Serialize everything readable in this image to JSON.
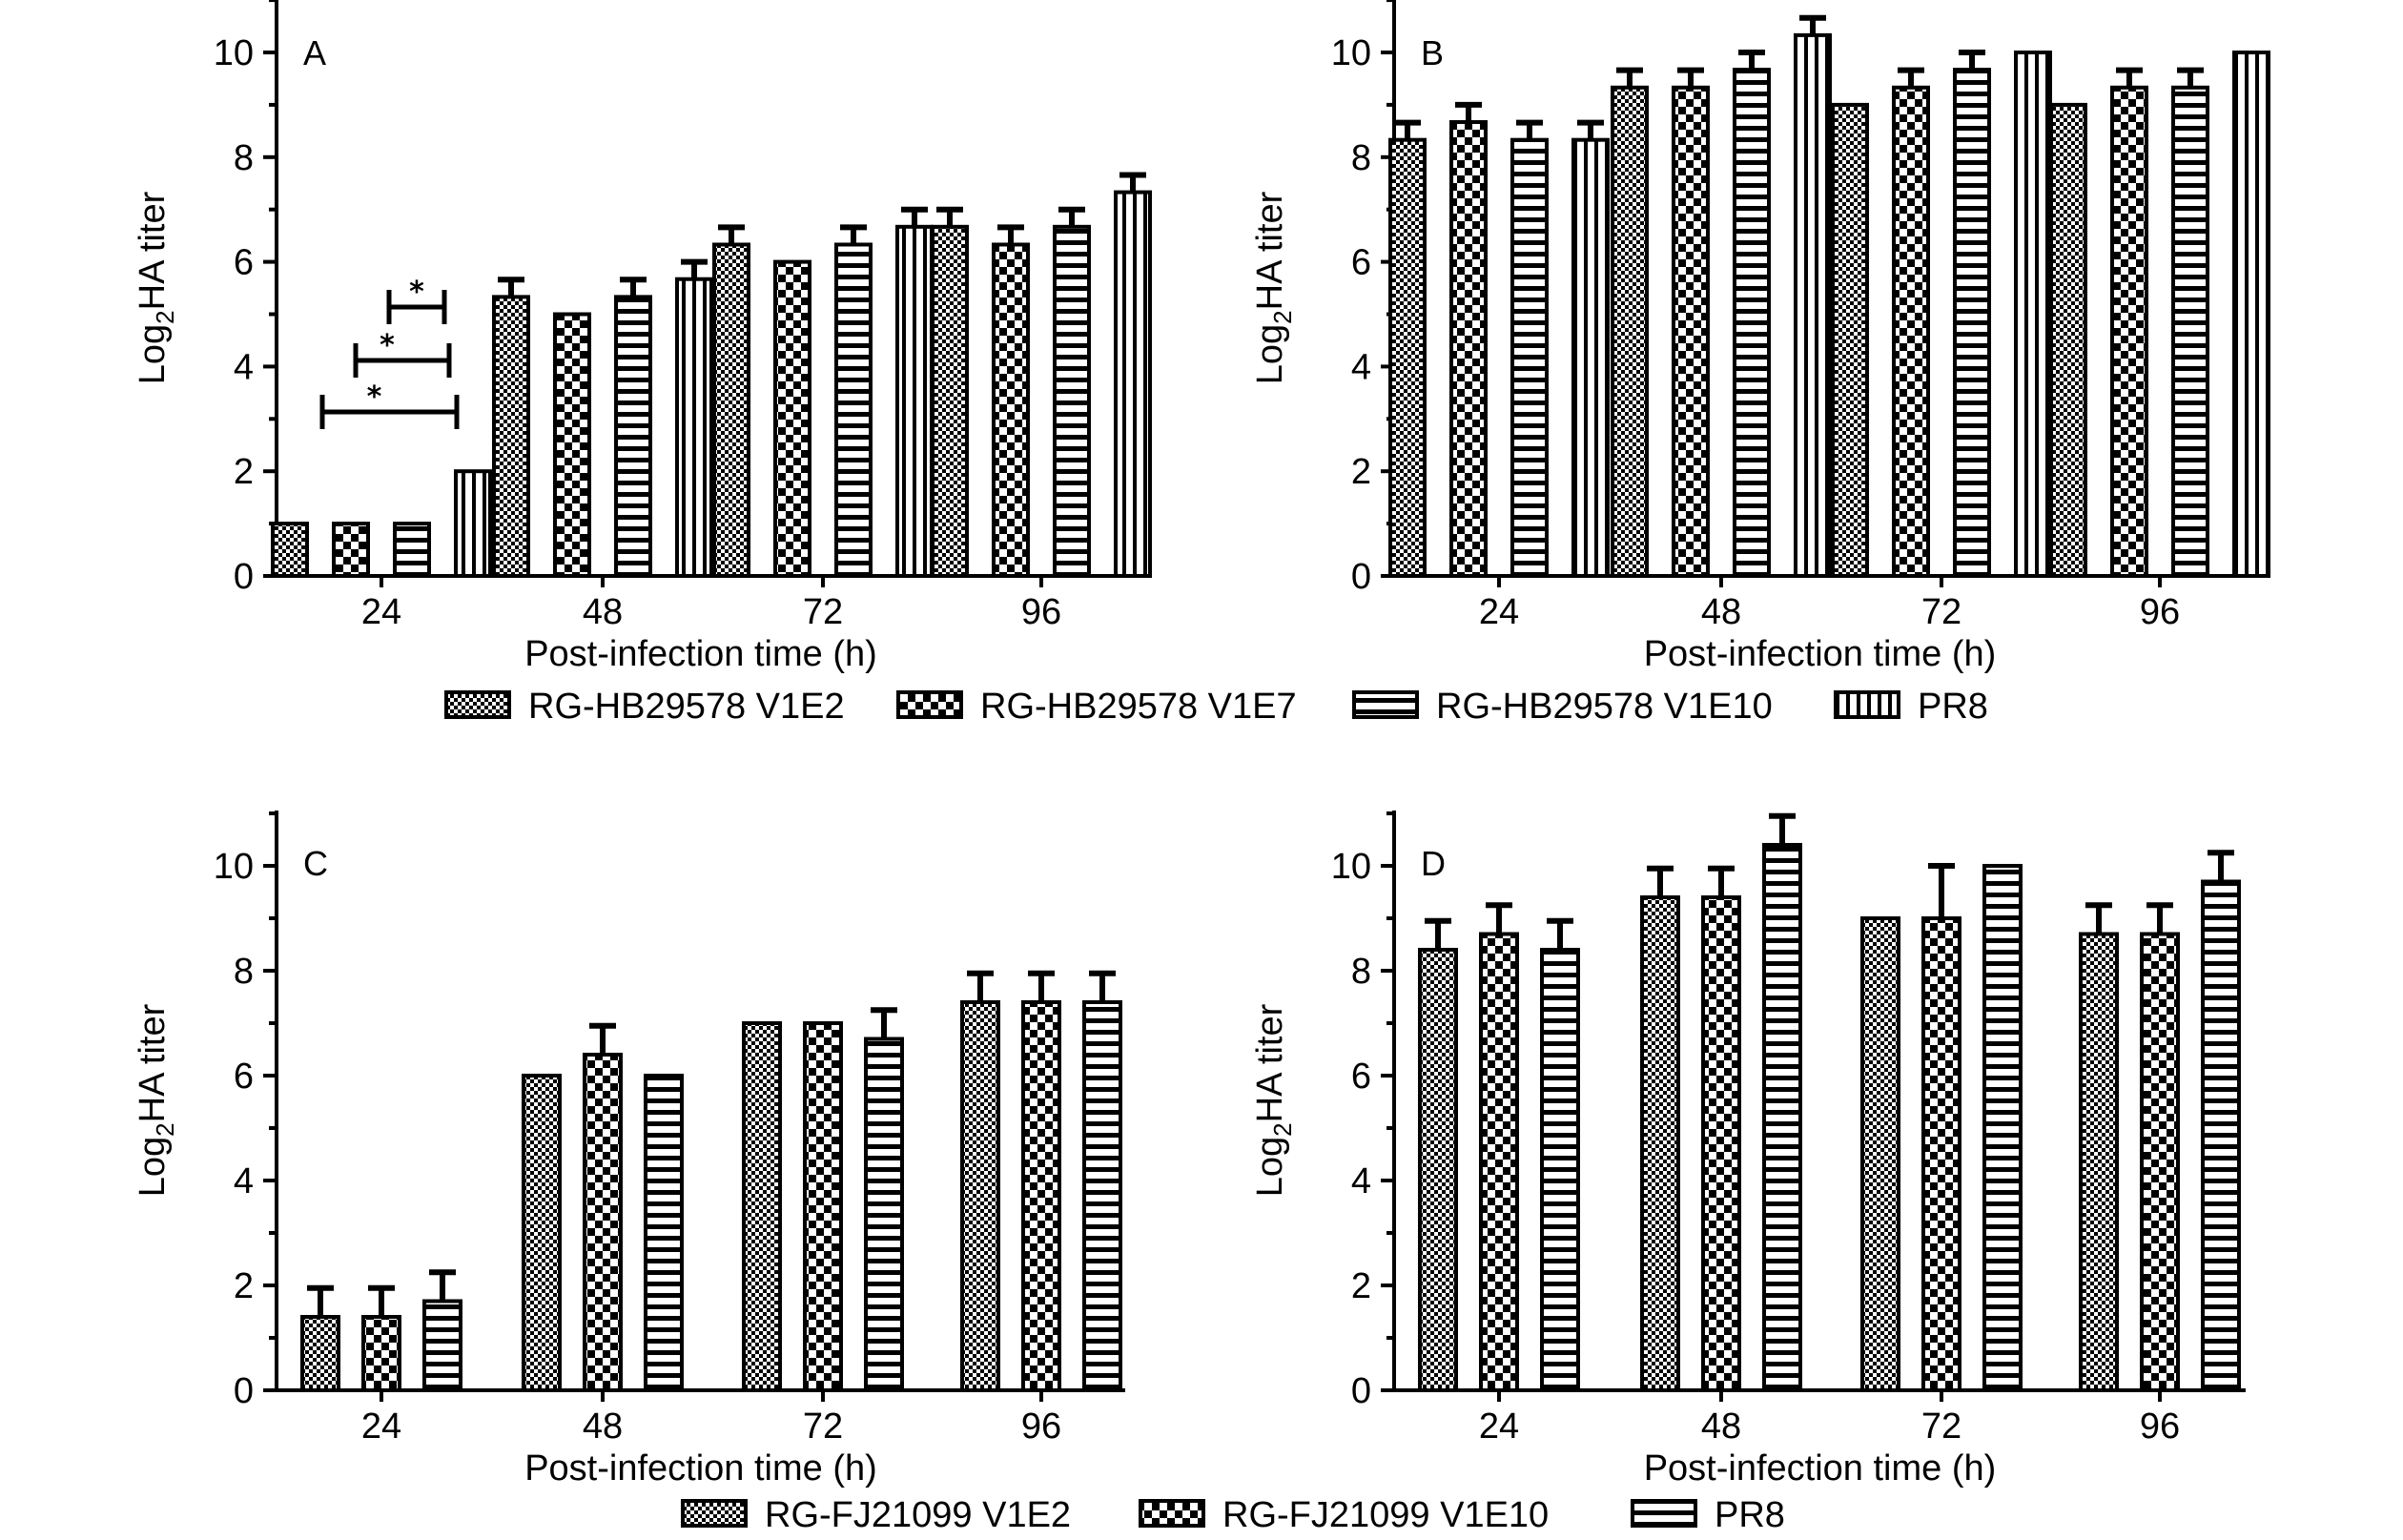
{
  "chart_data": [
    {
      "panel": "A",
      "type": "bar",
      "categories": [
        "24",
        "48",
        "72",
        "96"
      ],
      "xlabel": "Post-infection time (h)",
      "ylabel": {
        "main": "Log",
        "sub": "2",
        "rest": "HA titer"
      },
      "ylim": [
        0,
        11
      ],
      "yticks": [
        "0",
        "2",
        "4",
        "6",
        "8",
        "10"
      ],
      "legend_group": 0,
      "series": [
        {
          "name": "RG-HB29578 V1E2",
          "values": [
            1,
            5.33,
            6.33,
            6.67
          ],
          "errors": [
            0,
            0.33,
            0.33,
            0.33
          ]
        },
        {
          "name": "RG-HB29578 V1E7",
          "values": [
            1,
            5,
            6,
            6.33
          ],
          "errors": [
            0,
            0,
            0,
            0.33
          ]
        },
        {
          "name": "RG-HB29578 V1E10",
          "values": [
            1,
            5.33,
            6.33,
            6.67
          ],
          "errors": [
            0,
            0.33,
            0.33,
            0.33
          ]
        },
        {
          "name": "PR8",
          "values": [
            2,
            5.67,
            6.67,
            7.33
          ],
          "errors": [
            0,
            0.33,
            0.33,
            0.33
          ]
        }
      ],
      "annotations": [
        "*",
        "*",
        "*"
      ]
    },
    {
      "panel": "B",
      "type": "bar",
      "categories": [
        "24",
        "48",
        "72",
        "96"
      ],
      "xlabel": "Post-infection time (h)",
      "ylabel": {
        "main": "Log",
        "sub": "2",
        "rest": "HA titer"
      },
      "ylim": [
        0,
        11
      ],
      "yticks": [
        "0",
        "2",
        "4",
        "6",
        "8",
        "10"
      ],
      "legend_group": 0,
      "series": [
        {
          "name": "RG-HB29578 V1E2",
          "values": [
            8.33,
            9.33,
            9,
            9
          ],
          "errors": [
            0.33,
            0.33,
            0,
            0
          ]
        },
        {
          "name": "RG-HB29578 V1E7",
          "values": [
            8.67,
            9.33,
            9.33,
            9.33
          ],
          "errors": [
            0.33,
            0.33,
            0.33,
            0.33
          ]
        },
        {
          "name": "RG-HB29578 V1E10",
          "values": [
            8.33,
            9.67,
            9.67,
            9.33
          ],
          "errors": [
            0.33,
            0.33,
            0.33,
            0.33
          ]
        },
        {
          "name": "PR8",
          "values": [
            8.33,
            10.33,
            10,
            10
          ],
          "errors": [
            0.33,
            0.33,
            0,
            0
          ]
        }
      ]
    },
    {
      "panel": "C",
      "type": "bar",
      "categories": [
        "24",
        "48",
        "72",
        "96"
      ],
      "xlabel": "Post-infection time (h)",
      "ylabel": {
        "main": "Log",
        "sub": "2",
        "rest": "HA titer"
      },
      "ylim": [
        0,
        11
      ],
      "yticks": [
        "0",
        "2",
        "4",
        "6",
        "8",
        "10"
      ],
      "legend_group": 1,
      "series": [
        {
          "name": "RG-FJ21099 V1E2",
          "values": [
            1.4,
            6,
            7,
            7.4
          ],
          "errors": [
            0.55,
            0,
            0,
            0.55
          ]
        },
        {
          "name": "RG-FJ21099 V1E10",
          "values": [
            1.4,
            6.4,
            7,
            7.4
          ],
          "errors": [
            0.55,
            0.55,
            0,
            0.55
          ]
        },
        {
          "name": "PR8",
          "values": [
            1.7,
            6,
            6.7,
            7.4
          ],
          "errors": [
            0.55,
            0,
            0.55,
            0.55
          ]
        }
      ]
    },
    {
      "panel": "D",
      "type": "bar",
      "categories": [
        "24",
        "48",
        "72",
        "96"
      ],
      "xlabel": "Post-infection time (h)",
      "ylabel": {
        "main": "Log",
        "sub": "2",
        "rest": "HA titer"
      },
      "ylim": [
        0,
        11
      ],
      "yticks": [
        "0",
        "2",
        "4",
        "6",
        "8",
        "10"
      ],
      "legend_group": 1,
      "series": [
        {
          "name": "RG-FJ21099 V1E2",
          "values": [
            8.4,
            9.4,
            9,
            8.7
          ],
          "errors": [
            0.55,
            0.55,
            0,
            0.55
          ]
        },
        {
          "name": "RG-FJ21099 V1E10",
          "values": [
            8.7,
            9.4,
            9,
            8.7
          ],
          "errors": [
            0.55,
            0.55,
            1,
            0.55
          ]
        },
        {
          "name": "PR8",
          "values": [
            8.4,
            10.4,
            10,
            9.7
          ],
          "errors": [
            0.55,
            0.55,
            0,
            0.55
          ]
        }
      ]
    }
  ],
  "legends": [
    {
      "entries": [
        {
          "label": "RG-HB29578 V1E2",
          "pattern": "checker"
        },
        {
          "label": "RG-HB29578 V1E7",
          "pattern": "bigcheck"
        },
        {
          "label": "RG-HB29578 V1E10",
          "pattern": "hstripe"
        },
        {
          "label": "PR8",
          "pattern": "vstripe"
        }
      ]
    },
    {
      "entries": [
        {
          "label": "RG-FJ21099 V1E2",
          "pattern": "checker"
        },
        {
          "label": "RG-FJ21099 V1E10",
          "pattern": "bigcheck"
        },
        {
          "label": "PR8",
          "pattern": "hstripe"
        }
      ]
    }
  ]
}
